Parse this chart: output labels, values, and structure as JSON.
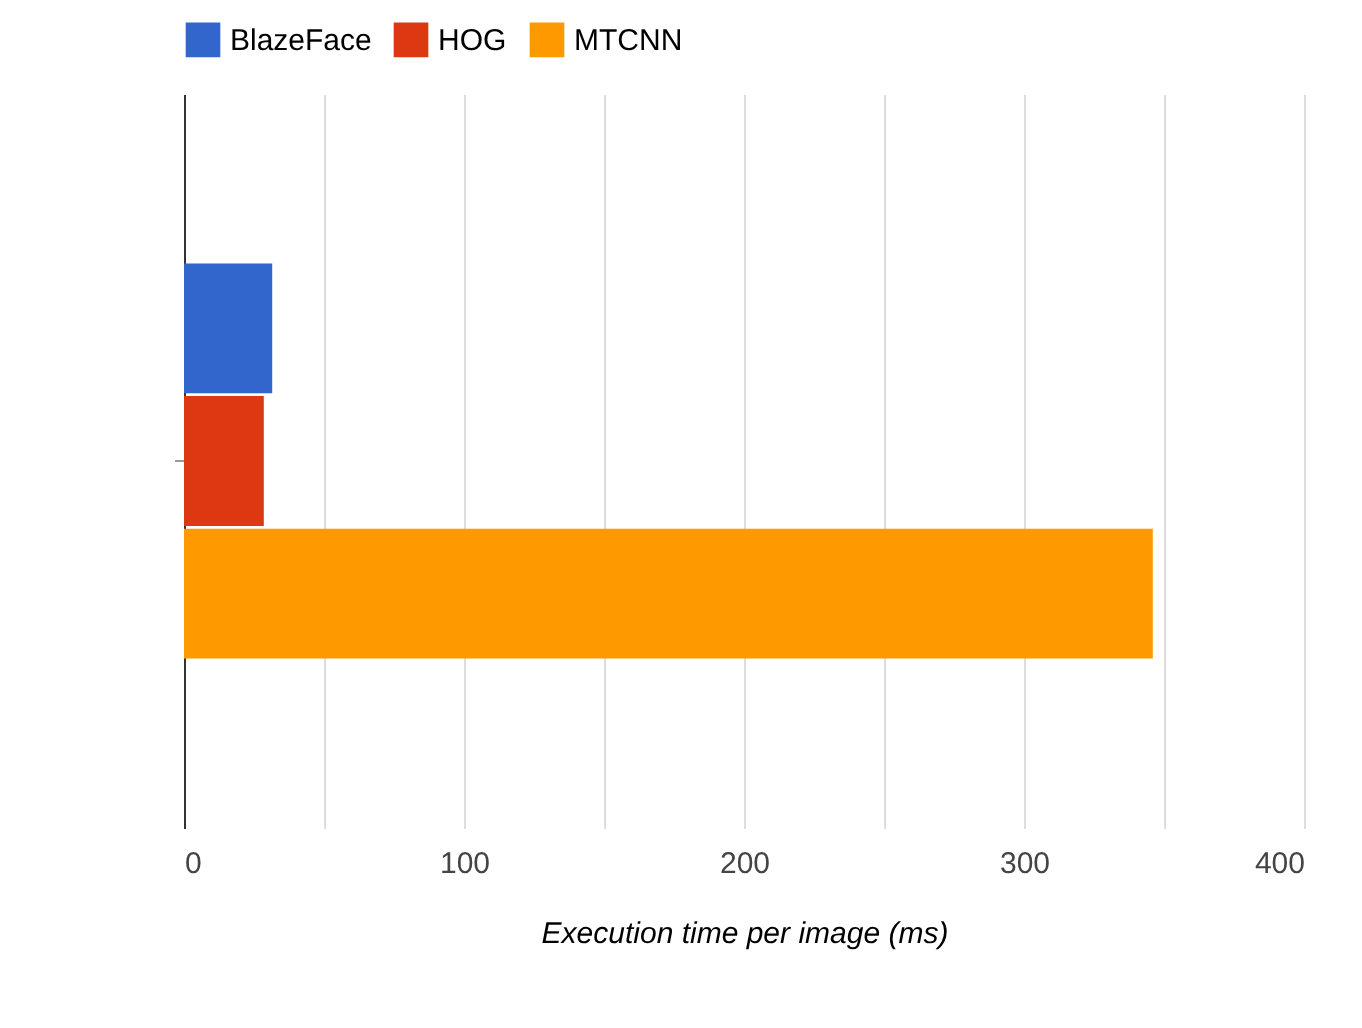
{
  "chart_data": {
    "type": "bar",
    "orientation": "horizontal",
    "categories": [
      null
    ],
    "series": [
      {
        "name": "BlazeFace",
        "color": "#3366cc",
        "values": [
          31.5
        ]
      },
      {
        "name": "HOG",
        "color": "#dc3912",
        "values": [
          28.5
        ]
      },
      {
        "name": "MTCNN",
        "color": "#ff9900",
        "values": [
          346
        ]
      }
    ],
    "xlabel": "Execution time per image (ms)",
    "xlim": [
      0,
      400
    ],
    "xticks": [
      0,
      {
        "value": 50,
        "label": null
      },
      100,
      {
        "value": 150,
        "label": null
      },
      200,
      {
        "value": 250,
        "label": null
      },
      300,
      {
        "value": 350,
        "label": null
      },
      400
    ],
    "grid": "x",
    "legend": "top"
  }
}
